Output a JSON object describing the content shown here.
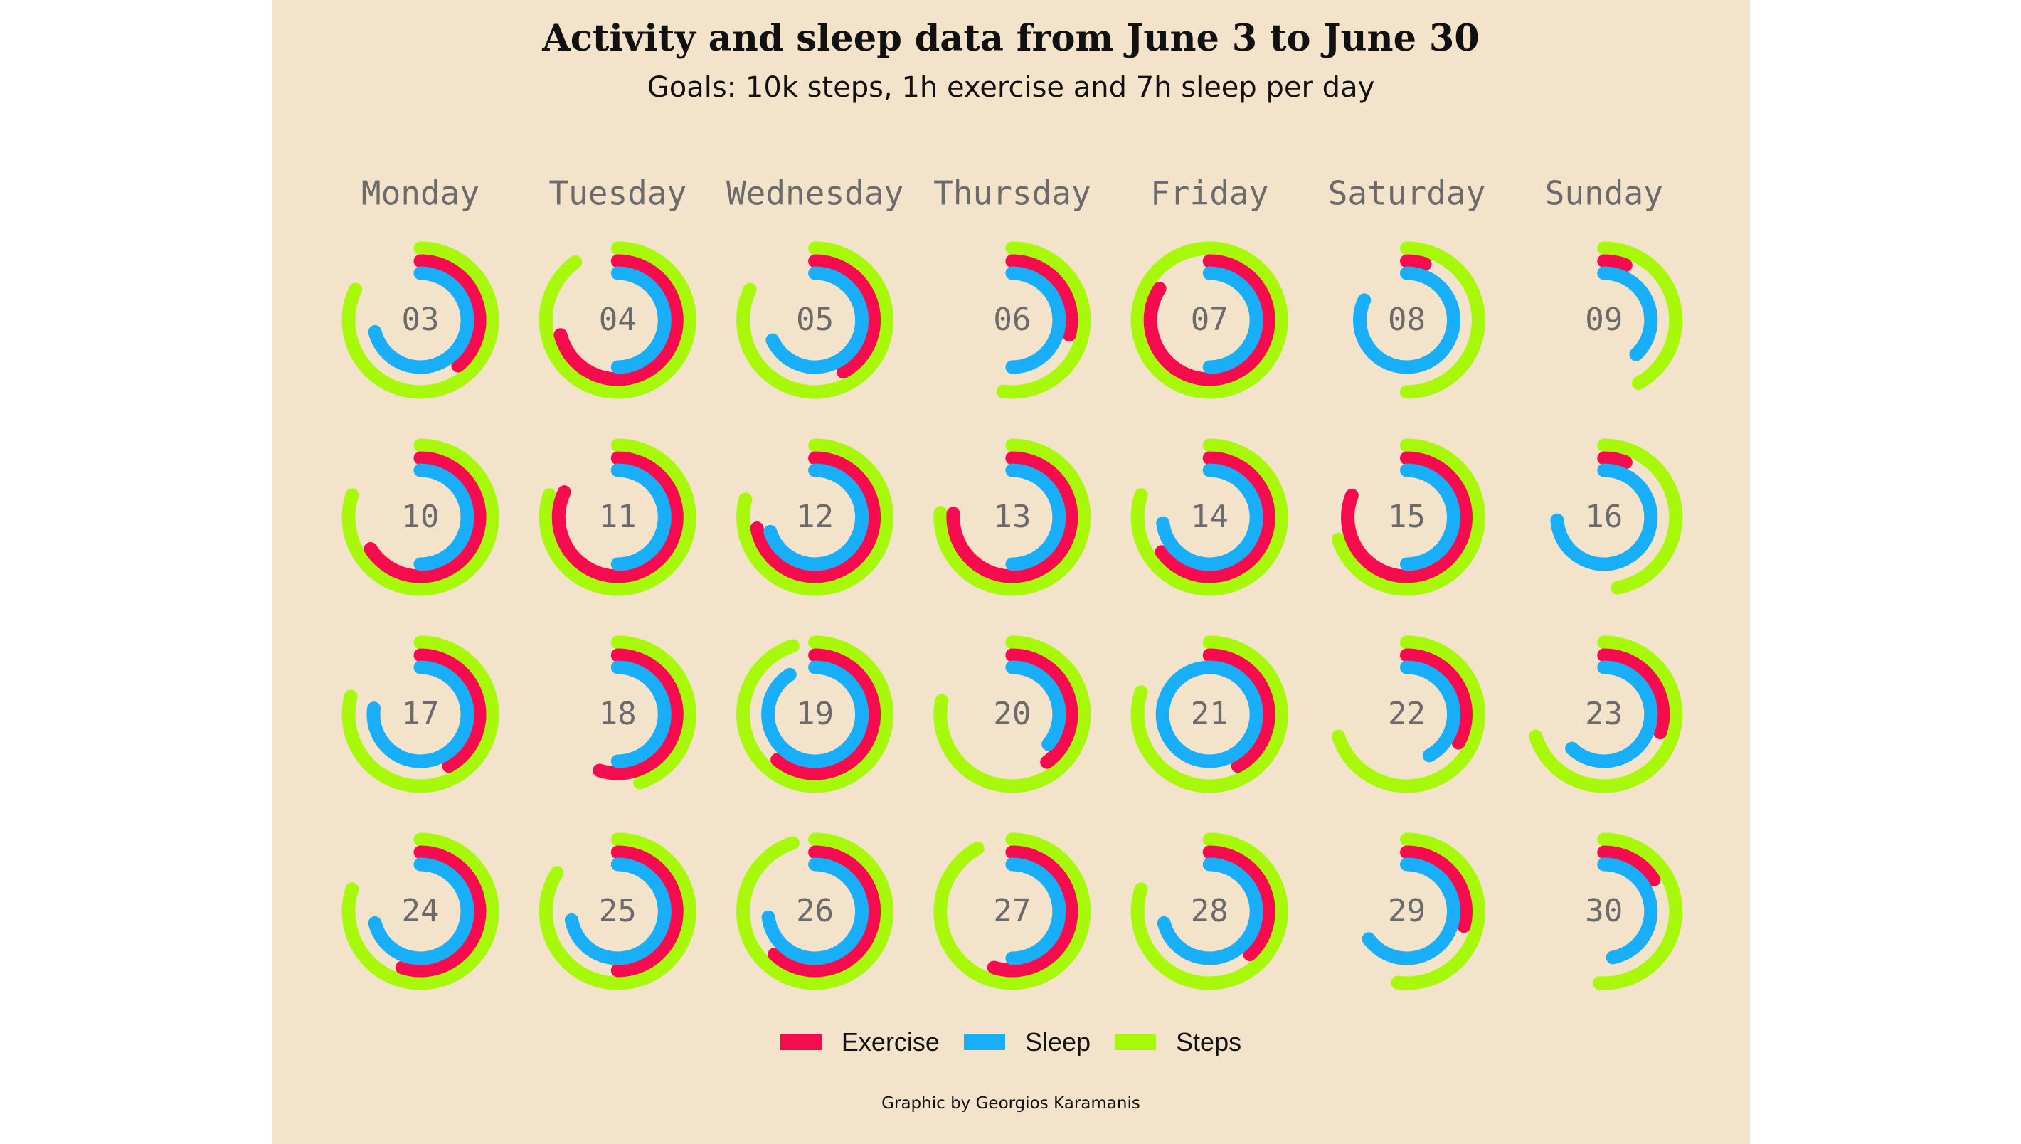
{
  "chart_data": {
    "type": "radial-calendar",
    "title": "Activity and sleep data from June 3 to June 30",
    "subtitle": "Goals: 10k steps, 1h exercise and 7h sleep per day",
    "caption": "Graphic by Georgios Karamanis",
    "weekdays": [
      "Monday",
      "Tuesday",
      "Wednesday",
      "Thursday",
      "Friday",
      "Saturday",
      "Sunday"
    ],
    "legend": [
      {
        "key": "exercise",
        "name": "Exercise",
        "color": "#F50C4F"
      },
      {
        "key": "sleep",
        "name": "Sleep",
        "color": "#19AEF8"
      },
      {
        "key": "steps",
        "name": "Steps",
        "color": "#A8F80C"
      }
    ],
    "value_unit": "fraction of daily goal",
    "days": [
      {
        "day": "03",
        "steps": 0.82,
        "sleep": 0.71,
        "exercise": 0.39
      },
      {
        "day": "04",
        "steps": 0.9,
        "sleep": 0.5,
        "exercise": 0.71
      },
      {
        "day": "05",
        "steps": 0.82,
        "sleep": 0.68,
        "exercise": 0.42
      },
      {
        "day": "06",
        "steps": 0.52,
        "sleep": 0.5,
        "exercise": 0.29
      },
      {
        "day": "07",
        "steps": 1.0,
        "sleep": 0.5,
        "exercise": 0.84
      },
      {
        "day": "08",
        "steps": 0.5,
        "sleep": 0.82,
        "exercise": 0.05
      },
      {
        "day": "09",
        "steps": 0.42,
        "sleep": 0.38,
        "exercise": 0.06
      },
      {
        "day": "10",
        "steps": 0.8,
        "sleep": 0.5,
        "exercise": 0.66
      },
      {
        "day": "11",
        "steps": 0.8,
        "sleep": 0.5,
        "exercise": 0.82
      },
      {
        "day": "12",
        "steps": 0.79,
        "sleep": 0.7,
        "exercise": 0.72
      },
      {
        "day": "13",
        "steps": 0.76,
        "sleep": 0.5,
        "exercise": 0.76
      },
      {
        "day": "14",
        "steps": 0.8,
        "sleep": 0.73,
        "exercise": 0.65
      },
      {
        "day": "15",
        "steps": 0.7,
        "sleep": 0.5,
        "exercise": 0.81
      },
      {
        "day": "16",
        "steps": 0.47,
        "sleep": 0.74,
        "exercise": 0.06
      },
      {
        "day": "17",
        "steps": 0.79,
        "sleep": 0.77,
        "exercise": 0.42
      },
      {
        "day": "18",
        "steps": 0.45,
        "sleep": 0.5,
        "exercise": 0.55
      },
      {
        "day": "19",
        "steps": 0.95,
        "sleep": 0.91,
        "exercise": 0.61
      },
      {
        "day": "20",
        "steps": 0.78,
        "sleep": 0.36,
        "exercise": 0.4
      },
      {
        "day": "21",
        "steps": 0.8,
        "sleep": 1.0,
        "exercise": 0.42
      },
      {
        "day": "22",
        "steps": 0.7,
        "sleep": 0.42,
        "exercise": 0.33
      },
      {
        "day": "23",
        "steps": 0.7,
        "sleep": 0.62,
        "exercise": 0.3
      },
      {
        "day": "24",
        "steps": 0.8,
        "sleep": 0.71,
        "exercise": 0.55
      },
      {
        "day": "25",
        "steps": 0.84,
        "sleep": 0.72,
        "exercise": 0.5
      },
      {
        "day": "26",
        "steps": 0.95,
        "sleep": 0.73,
        "exercise": 0.62
      },
      {
        "day": "27",
        "steps": 0.92,
        "sleep": 0.5,
        "exercise": 0.55
      },
      {
        "day": "28",
        "steps": 0.8,
        "sleep": 0.71,
        "exercise": 0.38
      },
      {
        "day": "29",
        "steps": 0.52,
        "sleep": 0.65,
        "exercise": 0.29
      },
      {
        "day": "30",
        "steps": 0.51,
        "sleep": 0.47,
        "exercise": 0.16
      }
    ]
  }
}
